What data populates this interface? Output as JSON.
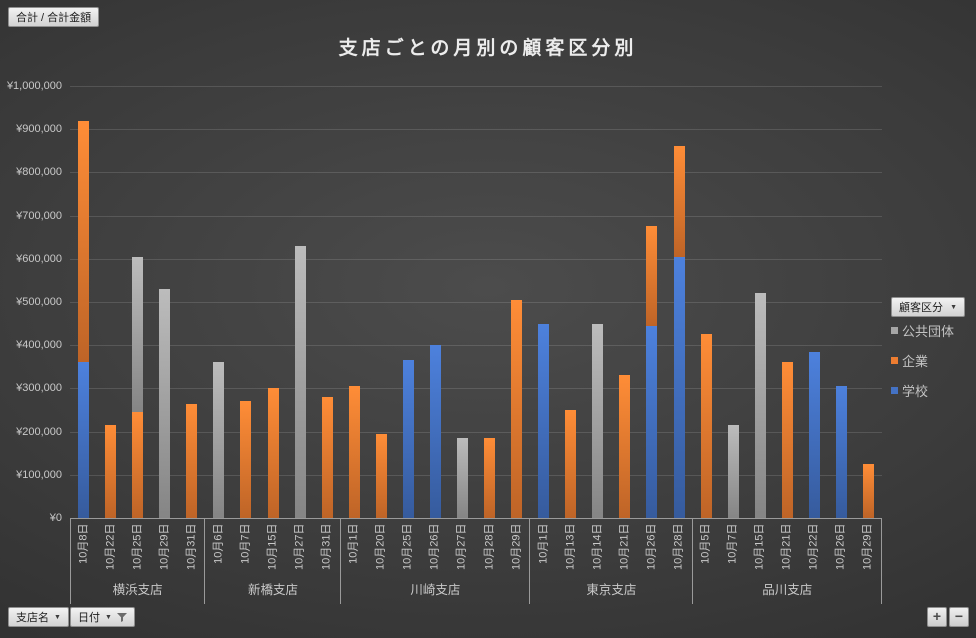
{
  "pivot_buttons": {
    "values": "合計 / 合計金額",
    "legend_field": "顧客区分",
    "axis_fields": [
      "支店名",
      "日付"
    ],
    "expand": "+",
    "collapse": "−"
  },
  "chart_data": {
    "type": "bar",
    "stacked": true,
    "title": "支店ごとの月別の顧客区分別",
    "xlabel": "",
    "ylabel": "",
    "ylim": [
      0,
      1000000
    ],
    "ytick_step": 100000,
    "ytick_labels": [
      "¥0",
      "¥100,000",
      "¥200,000",
      "¥300,000",
      "¥400,000",
      "¥500,000",
      "¥600,000",
      "¥700,000",
      "¥800,000",
      "¥900,000",
      "¥1,000,000"
    ],
    "grid": true,
    "legend_position": "right",
    "series": [
      {
        "name": "学校",
        "color": "#4472C4"
      },
      {
        "name": "企業",
        "color": "#ED7D31"
      },
      {
        "name": "公共団体",
        "color": "#A6A6A6"
      }
    ],
    "legend_order": [
      "公共団体",
      "企業",
      "学校"
    ],
    "groups": [
      {
        "branch": "横浜支店",
        "points": [
          {
            "date": "10月8日",
            "values": {
              "学校": 360000,
              "企業": 560000
            }
          },
          {
            "date": "10月22日",
            "values": {
              "企業": 215000
            }
          },
          {
            "date": "10月25日",
            "values": {
              "企業": 245000,
              "公共団体": 360000
            }
          },
          {
            "date": "10月29日",
            "values": {
              "公共団体": 530000
            }
          },
          {
            "date": "10月31日",
            "values": {
              "企業": 265000
            }
          }
        ]
      },
      {
        "branch": "新橋支店",
        "points": [
          {
            "date": "10月6日",
            "values": {
              "公共団体": 360000
            }
          },
          {
            "date": "10月7日",
            "values": {
              "企業": 270000
            }
          },
          {
            "date": "10月15日",
            "values": {
              "企業": 300000
            }
          },
          {
            "date": "10月27日",
            "values": {
              "公共団体": 630000
            }
          },
          {
            "date": "10月31日",
            "values": {
              "企業": 280000
            }
          }
        ]
      },
      {
        "branch": "川崎支店",
        "points": [
          {
            "date": "10月1日",
            "values": {
              "企業": 305000
            }
          },
          {
            "date": "10月20日",
            "values": {
              "企業": 195000
            }
          },
          {
            "date": "10月25日",
            "values": {
              "学校": 365000
            }
          },
          {
            "date": "10月26日",
            "values": {
              "学校": 400000
            }
          },
          {
            "date": "10月27日",
            "values": {
              "公共団体": 185000
            }
          },
          {
            "date": "10月28日",
            "values": {
              "企業": 185000
            }
          },
          {
            "date": "10月29日",
            "values": {
              "企業": 505000
            }
          }
        ]
      },
      {
        "branch": "東京支店",
        "points": [
          {
            "date": "10月1日",
            "values": {
              "学校": 450000
            }
          },
          {
            "date": "10月13日",
            "values": {
              "企業": 250000
            }
          },
          {
            "date": "10月14日",
            "values": {
              "公共団体": 450000
            }
          },
          {
            "date": "10月21日",
            "values": {
              "企業": 330000
            }
          },
          {
            "date": "10月26日",
            "values": {
              "学校": 445000,
              "企業": 230000
            }
          },
          {
            "date": "10月28日",
            "values": {
              "学校": 605000,
              "企業": 255000
            }
          }
        ]
      },
      {
        "branch": "品川支店",
        "points": [
          {
            "date": "10月5日",
            "values": {
              "企業": 425000
            }
          },
          {
            "date": "10月7日",
            "values": {
              "公共団体": 215000
            }
          },
          {
            "date": "10月15日",
            "values": {
              "公共団体": 520000
            }
          },
          {
            "date": "10月21日",
            "values": {
              "企業": 360000
            }
          },
          {
            "date": "10月22日",
            "values": {
              "学校": 385000
            }
          },
          {
            "date": "10月26日",
            "values": {
              "学校": 305000
            }
          },
          {
            "date": "10月29日",
            "values": {
              "企業": 125000
            }
          }
        ]
      }
    ]
  }
}
